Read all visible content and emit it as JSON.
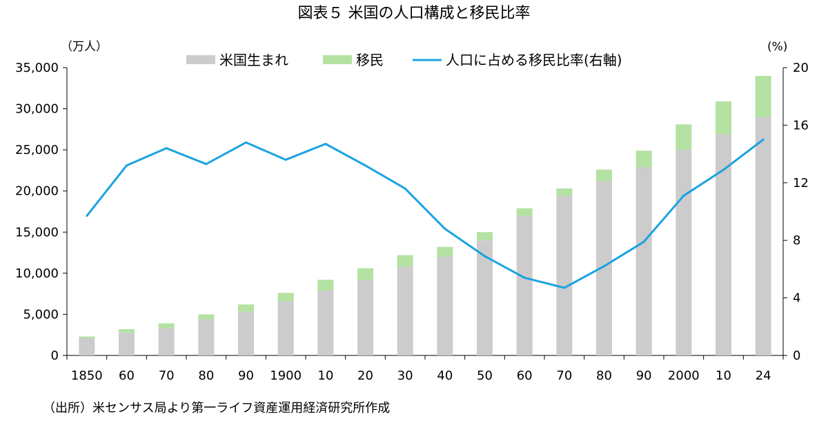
{
  "chart_data": {
    "type": "bar",
    "title": "図表５ 米国の人口構成と移民比率",
    "y_left_unit": "（万人）",
    "y_right_unit": "(%)",
    "source": "（出所）米センサス局より第一ライフ資産運用経済研究所作成",
    "categories": [
      "1850",
      "60",
      "70",
      "80",
      "90",
      "1900",
      "10",
      "20",
      "30",
      "40",
      "50",
      "60",
      "70",
      "80",
      "90",
      "2000",
      "10",
      "24"
    ],
    "y_left_ticks": [
      "0",
      "5,000",
      "10,000",
      "15,000",
      "20,000",
      "25,000",
      "30,000",
      "35,000"
    ],
    "y_right_ticks": [
      "0",
      "4",
      "8",
      "12",
      "16",
      "20"
    ],
    "ylim_left": [
      0,
      35000
    ],
    "ylim_right": [
      0,
      20
    ],
    "stacked": true,
    "grid": false,
    "legend_position": "top",
    "series": [
      {
        "name": "米国生まれ",
        "kind": "bar",
        "axis": "left",
        "color": "#cccccc",
        "values": [
          2100,
          2800,
          3300,
          4400,
          5300,
          6600,
          7900,
          9200,
          10800,
          12000,
          14000,
          17000,
          19400,
          21200,
          22900,
          25000,
          26900,
          29000
        ]
      },
      {
        "name": "移民",
        "kind": "bar",
        "axis": "left",
        "color": "#b3e2a3",
        "values": [
          200,
          400,
          600,
          600,
          900,
          1000,
          1300,
          1400,
          1400,
          1200,
          1000,
          900,
          900,
          1400,
          2000,
          3100,
          4000,
          5000
        ]
      },
      {
        "name": "人口に占める移民比率(右軸)",
        "kind": "line",
        "axis": "right",
        "color": "#1aa3e0",
        "values": [
          9.7,
          13.2,
          14.4,
          13.3,
          14.8,
          13.6,
          14.7,
          13.2,
          11.6,
          8.8,
          6.9,
          5.4,
          4.7,
          6.2,
          7.9,
          11.1,
          12.9,
          15.0
        ]
      }
    ]
  }
}
